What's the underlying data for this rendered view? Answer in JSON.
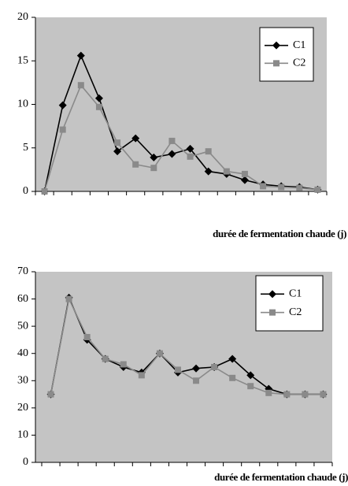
{
  "chart_data": [
    {
      "type": "line",
      "categories": [
        null,
        null,
        null,
        null,
        null,
        null,
        null,
        null,
        null,
        null,
        null,
        null,
        null,
        null,
        null,
        null
      ],
      "series": [
        {
          "name": "C1",
          "color": "#000000",
          "marker": "diamond",
          "values": [
            0,
            9.9,
            15.6,
            10.7,
            4.6,
            6.1,
            3.9,
            4.3,
            4.9,
            2.3,
            2.0,
            1.3,
            0.8,
            0.6,
            0.5,
            0.2
          ]
        },
        {
          "name": "C2",
          "color": "#8a8a8a",
          "marker": "square",
          "values": [
            0,
            7.1,
            12.2,
            9.7,
            5.6,
            3.1,
            2.7,
            5.8,
            4.0,
            4.6,
            2.3,
            2.0,
            0.6,
            0.5,
            0.4,
            0.2
          ]
        }
      ],
      "ylim": [
        0,
        20
      ],
      "yticks": [
        0,
        5,
        10,
        15,
        20
      ],
      "x_label": "durée de fermentation chaude (j)",
      "legend": "upper right"
    },
    {
      "type": "line",
      "categories": [
        null,
        null,
        null,
        null,
        null,
        null,
        null,
        null,
        null,
        null,
        null,
        null,
        null,
        null,
        null,
        null
      ],
      "series": [
        {
          "name": "C1",
          "color": "#000000",
          "marker": "diamond",
          "values": [
            25,
            60.5,
            45,
            38,
            35,
            33,
            40,
            33,
            34.5,
            35,
            38,
            32,
            27,
            25,
            25,
            25
          ]
        },
        {
          "name": "C2",
          "color": "#8a8a8a",
          "marker": "square",
          "values": [
            25,
            60,
            46,
            38,
            36,
            32,
            40,
            34,
            30,
            35,
            31,
            28,
            25.5,
            25,
            25,
            25
          ]
        }
      ],
      "ylim": [
        0,
        70
      ],
      "yticks": [
        0,
        10,
        20,
        30,
        40,
        50,
        60,
        70
      ],
      "x_label": "durée de fermentation chaude (j)",
      "legend": "upper right"
    }
  ]
}
